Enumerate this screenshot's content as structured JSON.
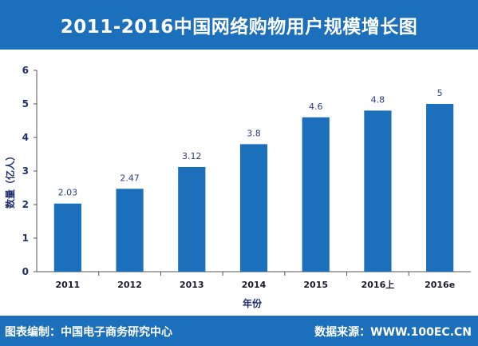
{
  "header": {
    "title": "2011-2016中国网络购物用户规模增长图"
  },
  "chart_data": {
    "type": "bar",
    "categories": [
      "2011",
      "2012",
      "2013",
      "2014",
      "2015",
      "2016上",
      "2016e"
    ],
    "values": [
      2.03,
      2.47,
      3.12,
      3.8,
      4.6,
      4.8,
      5
    ],
    "data_labels": [
      "2.03",
      "2.47",
      "3.12",
      "3.8",
      "4.6",
      "4.8",
      "5"
    ],
    "xlabel": "年份",
    "ylabel": "数量（亿人）",
    "ylim": [
      0,
      6
    ],
    "yticks": [
      "0",
      "1",
      "2",
      "3",
      "4",
      "5",
      "6"
    ],
    "grid": false,
    "bar_color": "#1b6fbb"
  },
  "footer": {
    "left": "图表编制：中国电子商务研究中心",
    "right": "数据来源：WWW.100EC.CN"
  },
  "colors": {
    "accent": "#1b6fbb"
  }
}
